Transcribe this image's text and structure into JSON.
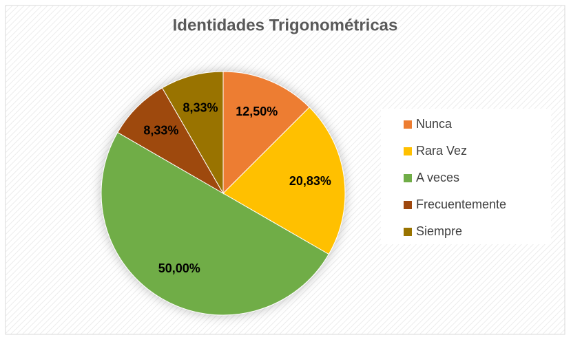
{
  "chart_data": {
    "type": "pie",
    "title": "Identidades Trigonométricas",
    "categories": [
      "Nunca",
      "Rara Vez",
      "A veces",
      "Frecuentemente",
      "Siempre"
    ],
    "values": [
      12.5,
      20.83,
      50,
      8.33,
      8.33
    ],
    "value_labels": [
      "12,50%",
      "20,83%",
      "50,00%",
      "8,33%",
      "8,33%"
    ],
    "colors": [
      "#ED7D31",
      "#FFC000",
      "#70AD47",
      "#9E480E",
      "#997300"
    ],
    "legend": "right"
  }
}
